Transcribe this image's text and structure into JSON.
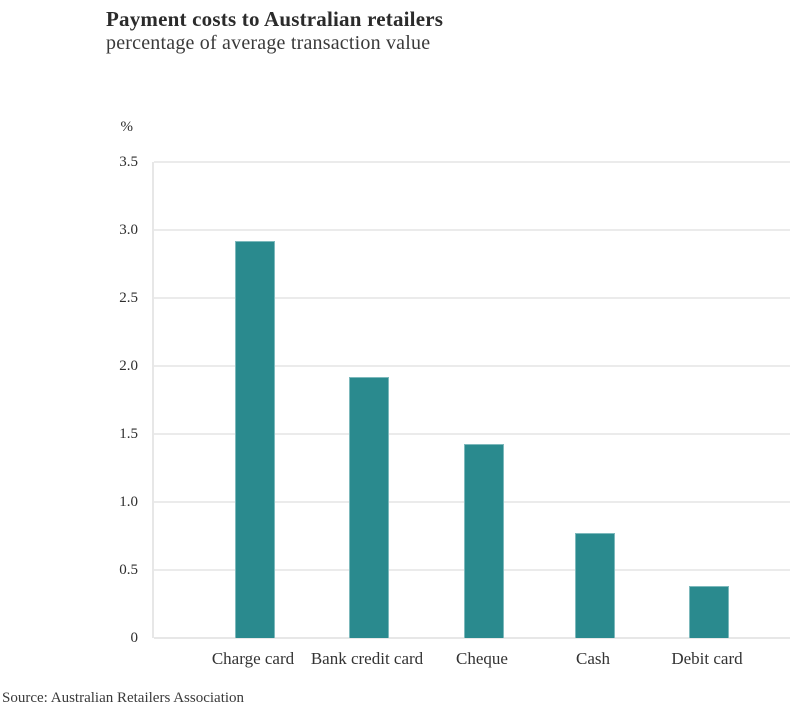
{
  "header": {
    "title": "Payment costs to Australian retailers",
    "subtitle": "percentage of average transaction value"
  },
  "chart_data": {
    "type": "bar",
    "title": "Payment costs to Australian retailers",
    "subtitle": "percentage of average transaction value",
    "unit_label": "%",
    "categories": [
      "Charge card",
      "Bank credit card",
      "Cheque",
      "Cash",
      "Debit card"
    ],
    "values": [
      2.92,
      1.92,
      1.43,
      0.77,
      0.38
    ],
    "ylim": [
      0,
      3.5
    ],
    "yticks": [
      {
        "value": 3.5,
        "label": "3.5"
      },
      {
        "value": 3.0,
        "label": "3.0"
      },
      {
        "value": 2.5,
        "label": "2.5"
      },
      {
        "value": 2.0,
        "label": "2.0"
      },
      {
        "value": 1.5,
        "label": "1.5"
      },
      {
        "value": 1.0,
        "label": "1.0"
      },
      {
        "value": 0.5,
        "label": "0.5"
      },
      {
        "value": 0,
        "label": "0"
      }
    ],
    "grid": true,
    "legend": "none",
    "bar_color": "#2a8a8e",
    "bar_edge_color": "#7db9bc",
    "grid_color": "#ebebeb",
    "text_color": "#2e2e2e"
  },
  "footer": {
    "source": "Source: Australian Retailers Association"
  }
}
